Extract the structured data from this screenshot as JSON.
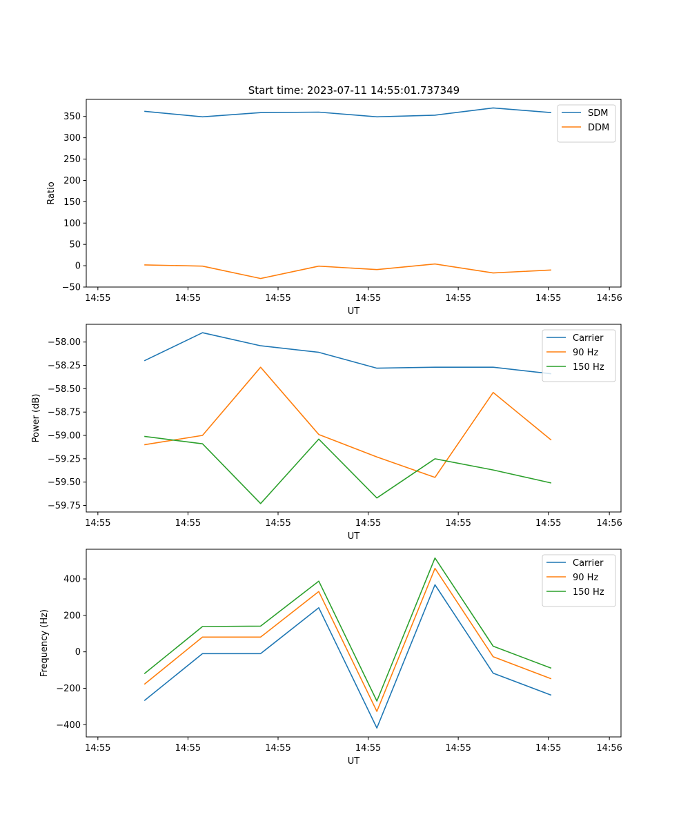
{
  "figure": {
    "title": "Start time: 2023-07-11 14:55:01.737349"
  },
  "colors": {
    "blue": "#1f77b4",
    "orange": "#ff7f0e",
    "green": "#2ca02c"
  },
  "chart_data": [
    {
      "type": "line",
      "title": "Start time: 2023-07-11 14:55:01.737349",
      "xlabel": "UT",
      "ylabel": "Ratio",
      "x": [
        1,
        2,
        3,
        4,
        5,
        6,
        7,
        8
      ],
      "xlim": [
        0,
        9.2
      ],
      "xticks": [
        0.2,
        1.75,
        3.3,
        4.85,
        6.4,
        7.95,
        9.0
      ],
      "xtick_labels": [
        "14:55",
        "14:55",
        "14:55",
        "14:55",
        "14:55",
        "14:55",
        "14:56"
      ],
      "ylim": [
        -50,
        390
      ],
      "yticks": [
        -50,
        0,
        50,
        100,
        150,
        200,
        250,
        300,
        350
      ],
      "ytick_labels": [
        "−50",
        "0",
        "50",
        "100",
        "150",
        "200",
        "250",
        "300",
        "350"
      ],
      "legend_position": "top-right",
      "series": [
        {
          "name": "SDM",
          "color": "#1f77b4",
          "values": [
            362,
            349,
            359,
            360,
            349,
            353,
            370,
            359
          ]
        },
        {
          "name": "DDM",
          "color": "#ff7f0e",
          "values": [
            2,
            -1,
            -30,
            -1,
            -9,
            4,
            -17,
            -10
          ]
        }
      ]
    },
    {
      "type": "line",
      "title": "",
      "xlabel": "UT",
      "ylabel": "Power (dB)",
      "x": [
        1,
        2,
        3,
        4,
        5,
        6,
        7,
        8
      ],
      "xlim": [
        0,
        9.2
      ],
      "xticks": [
        0.2,
        1.75,
        3.3,
        4.85,
        6.4,
        7.95,
        9.0
      ],
      "xtick_labels": [
        "14:55",
        "14:55",
        "14:55",
        "14:55",
        "14:55",
        "14:55",
        "14:56"
      ],
      "ylim": [
        -59.82,
        -57.81
      ],
      "yticks": [
        -59.75,
        -59.5,
        -59.25,
        -59.0,
        -58.75,
        -58.5,
        -58.25,
        -58.0
      ],
      "ytick_labels": [
        "−59.75",
        "−59.50",
        "−59.25",
        "−59.00",
        "−58.75",
        "−58.50",
        "−58.25",
        "−58.00"
      ],
      "legend_position": "top-right",
      "series": [
        {
          "name": "Carrier",
          "color": "#1f77b4",
          "values": [
            -58.2,
            -57.9,
            -58.04,
            -58.11,
            -58.28,
            -58.27,
            -58.27,
            -58.34
          ]
        },
        {
          "name": "90 Hz",
          "color": "#ff7f0e",
          "values": [
            -59.1,
            -59.0,
            -58.27,
            -58.99,
            -59.23,
            -59.45,
            -58.54,
            -59.05
          ]
        },
        {
          "name": "150 Hz",
          "color": "#2ca02c",
          "values": [
            -59.01,
            -59.09,
            -59.73,
            -59.04,
            -59.67,
            -59.25,
            -59.37,
            -59.51
          ]
        }
      ]
    },
    {
      "type": "line",
      "title": "",
      "xlabel": "UT",
      "ylabel": "Frequency (Hz)",
      "x": [
        1,
        2,
        3,
        4,
        5,
        6,
        7,
        8
      ],
      "xlim": [
        0,
        9.2
      ],
      "xticks": [
        0.2,
        1.75,
        3.3,
        4.85,
        6.4,
        7.95,
        9.0
      ],
      "xtick_labels": [
        "14:55",
        "14:55",
        "14:55",
        "14:55",
        "14:55",
        "14:55",
        "14:56"
      ],
      "ylim": [
        -467,
        563
      ],
      "yticks": [
        -400,
        -200,
        0,
        200,
        400
      ],
      "ytick_labels": [
        "−400",
        "−200",
        "0",
        "200",
        "400"
      ],
      "legend_position": "top-right",
      "series": [
        {
          "name": "Carrier",
          "color": "#1f77b4",
          "values": [
            -268,
            -10,
            -10,
            242,
            -418,
            368,
            -117,
            -238
          ]
        },
        {
          "name": "90 Hz",
          "color": "#ff7f0e",
          "values": [
            -178,
            81,
            81,
            331,
            -327,
            458,
            -27,
            -148
          ]
        },
        {
          "name": "150 Hz",
          "color": "#2ca02c",
          "values": [
            -120,
            139,
            141,
            388,
            -270,
            515,
            31,
            -90
          ]
        }
      ]
    }
  ]
}
